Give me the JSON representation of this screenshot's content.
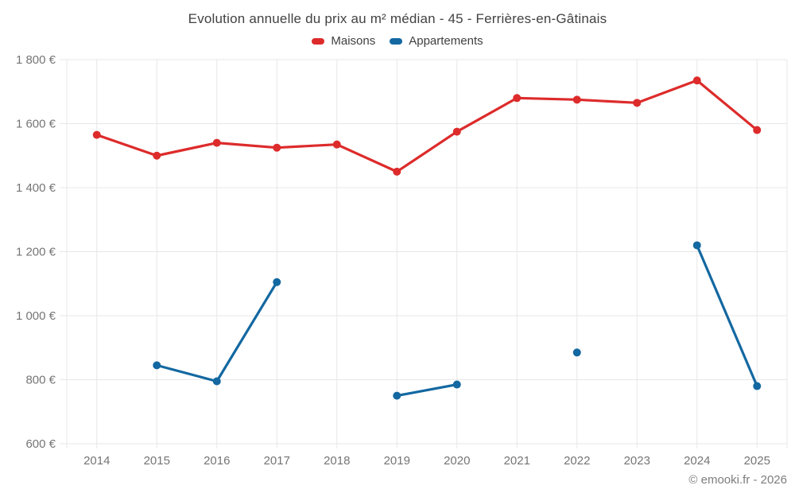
{
  "chart_data": {
    "type": "line",
    "title": "Evolution annuelle du prix au m² médian - 45 - Ferrières-en-Gâtinais",
    "categories": [
      "2014",
      "2015",
      "2016",
      "2017",
      "2018",
      "2019",
      "2020",
      "2021",
      "2022",
      "2023",
      "2024",
      "2025"
    ],
    "series": [
      {
        "name": "Maisons",
        "color": "#dd2b2b",
        "values": [
          1565,
          1500,
          1540,
          1525,
          1535,
          1450,
          1575,
          1680,
          1675,
          1665,
          1735,
          1580
        ]
      },
      {
        "name": "Appartements",
        "color": "#1368a1",
        "values": [
          null,
          845,
          795,
          1105,
          null,
          750,
          785,
          null,
          885,
          null,
          1220,
          780
        ]
      }
    ],
    "xlabel": "",
    "ylabel": "",
    "y_unit": "€",
    "ylim": [
      600,
      1800
    ],
    "y_ticks": [
      600,
      800,
      1000,
      1200,
      1400,
      1600,
      1800
    ],
    "y_tick_labels": [
      "600 €",
      "800 €",
      "1 000 €",
      "1 200 €",
      "1 400 €",
      "1 600 €",
      "1 800 €"
    ],
    "grid": true,
    "legend_position": "top",
    "footer": "© emooki.fr - 2026"
  },
  "colors": {
    "grid_line": "#e7e7e7",
    "tick_text": "#757575",
    "title_text": "#424242",
    "footer_text": "#7d7d7d"
  }
}
